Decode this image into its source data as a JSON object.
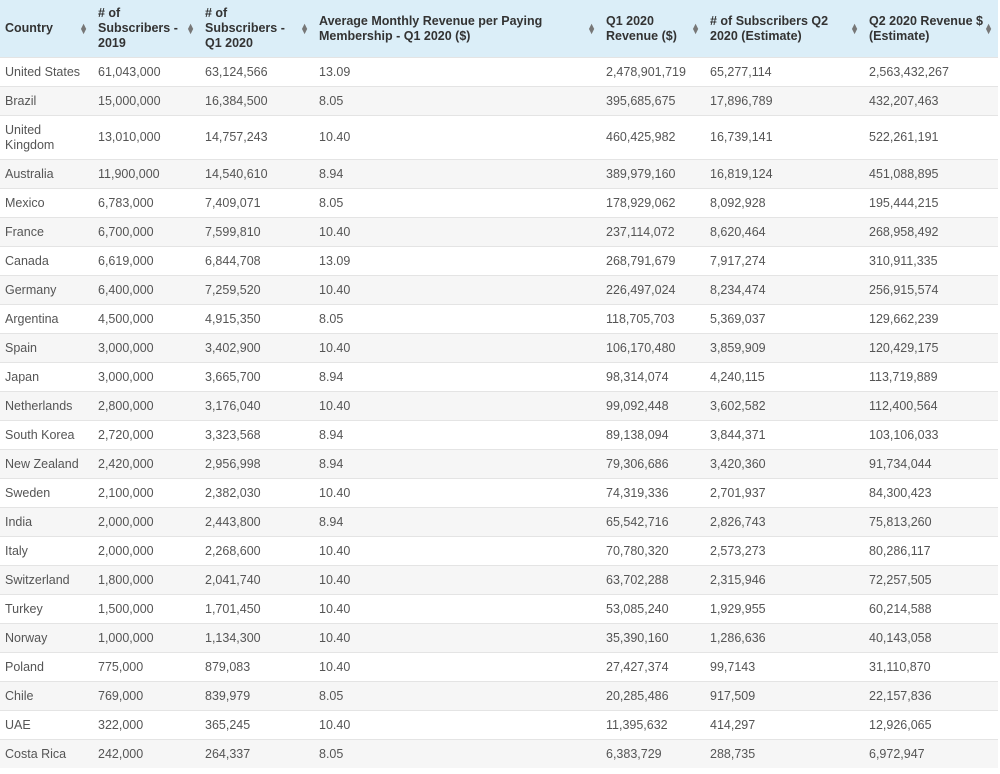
{
  "table": {
    "headers": [
      "Country",
      "# of Subscribers - 2019",
      "# of Subscribers - Q1 2020",
      "Average Monthly Revenue per Paying Membership - Q1 2020 ($)",
      "Q1 2020 Revenue ($)",
      "# of Subscribers Q2 2020 (Estimate)",
      "Q2 2020 Revenue $ (Estimate)"
    ],
    "rows": [
      [
        "United States",
        "61,043,000",
        "63,124,566",
        "13.09",
        "2,478,901,719",
        "65,277,114",
        "2,563,432,267"
      ],
      [
        "Brazil",
        "15,000,000",
        "16,384,500",
        "8.05",
        "395,685,675",
        "17,896,789",
        "432,207,463"
      ],
      [
        "United Kingdom",
        "13,010,000",
        "14,757,243",
        "10.40",
        "460,425,982",
        "16,739,141",
        "522,261,191"
      ],
      [
        "Australia",
        "11,900,000",
        "14,540,610",
        "8.94",
        "389,979,160",
        "16,819,124",
        "451,088,895"
      ],
      [
        "Mexico",
        "6,783,000",
        "7,409,071",
        "8.05",
        "178,929,062",
        "8,092,928",
        "195,444,215"
      ],
      [
        "France",
        "6,700,000",
        "7,599,810",
        "10.40",
        "237,114,072",
        "8,620,464",
        "268,958,492"
      ],
      [
        "Canada",
        "6,619,000",
        "6,844,708",
        "13.09",
        "268,791,679",
        "7,917,274",
        "310,911,335"
      ],
      [
        "Germany",
        "6,400,000",
        "7,259,520",
        "10.40",
        "226,497,024",
        "8,234,474",
        "256,915,574"
      ],
      [
        "Argentina",
        "4,500,000",
        "4,915,350",
        "8.05",
        "118,705,703",
        "5,369,037",
        "129,662,239"
      ],
      [
        "Spain",
        "3,000,000",
        "3,402,900",
        "10.40",
        "106,170,480",
        "3,859,909",
        "120,429,175"
      ],
      [
        "Japan",
        "3,000,000",
        "3,665,700",
        "8.94",
        "98,314,074",
        "4,240,115",
        "113,719,889"
      ],
      [
        "Netherlands",
        "2,800,000",
        "3,176,040",
        "10.40",
        "99,092,448",
        "3,602,582",
        "112,400,564"
      ],
      [
        "South Korea",
        "2,720,000",
        "3,323,568",
        "8.94",
        "89,138,094",
        "3,844,371",
        "103,106,033"
      ],
      [
        "New Zealand",
        "2,420,000",
        "2,956,998",
        "8.94",
        "79,306,686",
        "3,420,360",
        "91,734,044"
      ],
      [
        "Sweden",
        "2,100,000",
        "2,382,030",
        "10.40",
        "74,319,336",
        "2,701,937",
        "84,300,423"
      ],
      [
        "India",
        "2,000,000",
        "2,443,800",
        "8.94",
        "65,542,716",
        "2,826,743",
        "75,813,260"
      ],
      [
        "Italy",
        "2,000,000",
        "2,268,600",
        "10.40",
        "70,780,320",
        "2,573,273",
        "80,286,117"
      ],
      [
        "Switzerland",
        "1,800,000",
        "2,041,740",
        "10.40",
        "63,702,288",
        "2,315,946",
        "72,257,505"
      ],
      [
        "Turkey",
        "1,500,000",
        "1,701,450",
        "10.40",
        "53,085,240",
        "1,929,955",
        "60,214,588"
      ],
      [
        "Norway",
        "1,000,000",
        "1,134,300",
        "10.40",
        "35,390,160",
        "1,286,636",
        "40,143,058"
      ],
      [
        "Poland",
        "775,000",
        "879,083",
        "10.40",
        "27,427,374",
        "99,7143",
        "31,110,870"
      ],
      [
        "Chile",
        "769,000",
        "839,979",
        "8.05",
        "20,285,486",
        "917,509",
        "22,157,836"
      ],
      [
        "UAE",
        "322,000",
        "365,245",
        "10.40",
        "11,395,632",
        "414,297",
        "12,926,065"
      ],
      [
        "Costa Rica",
        "242,000",
        "264,337",
        "8.05",
        "6,383,729",
        "288,735",
        "6,972,947"
      ]
    ],
    "sort_icon": "sort-up-down-icon",
    "header_color": "#dbeef8"
  }
}
